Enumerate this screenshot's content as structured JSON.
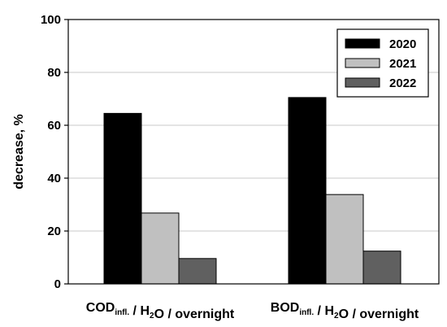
{
  "chart_data": {
    "type": "bar",
    "categories": [
      {
        "main1": "COD",
        "sub": "infl.",
        "main2": " / H",
        "sub2": "2",
        "main3": "O / overnight"
      },
      {
        "main1": "BOD",
        "sub": "infl.",
        "main2": " / H",
        "sub2": "2",
        "main3": "O / overnight"
      }
    ],
    "series": [
      {
        "name": "2020",
        "color": "#000000",
        "values": [
          64.5,
          70.5
        ]
      },
      {
        "name": "2021",
        "color": "#c0c0c0",
        "values": [
          26.8,
          33.8
        ]
      },
      {
        "name": "2022",
        "color": "#606060",
        "values": [
          9.6,
          12.4
        ]
      }
    ],
    "ylabel": "decrease, %",
    "ylim": [
      0,
      100
    ],
    "yticks": [
      0,
      20,
      40,
      60,
      80,
      100
    ],
    "grid": true,
    "legend_position": "top-right"
  }
}
